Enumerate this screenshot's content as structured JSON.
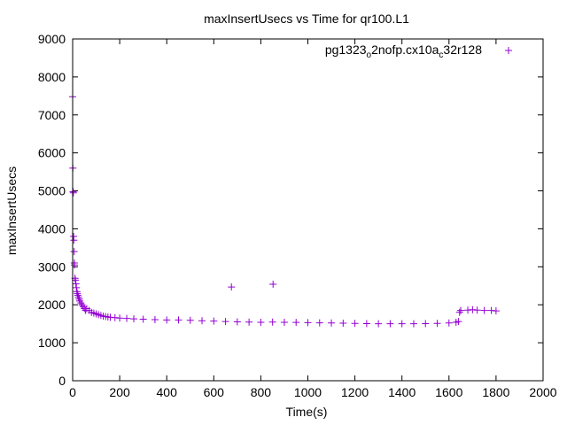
{
  "chart_data": {
    "type": "scatter",
    "title": "maxInsertUsecs vs Time for qr100.L1",
    "xlabel": "Time(s)",
    "ylabel": "maxInsertUsecs",
    "xlim": [
      0,
      2000
    ],
    "ylim": [
      0,
      9000
    ],
    "x_ticks": [
      "0",
      "200",
      "400",
      "600",
      "800",
      "1000",
      "1200",
      "1400",
      "1600",
      "1800",
      "2000"
    ],
    "y_ticks": [
      "0",
      "1000",
      "2000",
      "3000",
      "4000",
      "5000",
      "6000",
      "7000",
      "8000",
      "9000"
    ],
    "grid": false,
    "legend_position": "top-right",
    "marker": "+",
    "series": [
      {
        "name_parts": [
          {
            "text": "pg1323",
            "sub": false
          },
          {
            "text": "o",
            "sub": true
          },
          {
            "text": "2nofp.cx10a",
            "sub": false
          },
          {
            "text": "c",
            "sub": true
          },
          {
            "text": "32r128",
            "sub": false
          }
        ],
        "color": "#9400d3",
        "points": [
          [
            0,
            7480
          ],
          [
            1,
            5600
          ],
          [
            2,
            4980
          ],
          [
            3,
            4950
          ],
          [
            4,
            3800
          ],
          [
            5,
            3700
          ],
          [
            6,
            3400
          ],
          [
            7,
            3100
          ],
          [
            8,
            3050
          ],
          [
            10,
            2700
          ],
          [
            12,
            2650
          ],
          [
            14,
            2550
          ],
          [
            16,
            2450
          ],
          [
            18,
            2350
          ],
          [
            20,
            2300
          ],
          [
            22,
            2250
          ],
          [
            25,
            2200
          ],
          [
            28,
            2150
          ],
          [
            30,
            2100
          ],
          [
            35,
            2050
          ],
          [
            40,
            2000
          ],
          [
            45,
            1950
          ],
          [
            50,
            1900
          ],
          [
            55,
            1850
          ],
          [
            60,
            1900
          ],
          [
            70,
            1850
          ],
          [
            80,
            1800
          ],
          [
            90,
            1780
          ],
          [
            100,
            1760
          ],
          [
            110,
            1740
          ],
          [
            120,
            1720
          ],
          [
            130,
            1700
          ],
          [
            140,
            1690
          ],
          [
            150,
            1680
          ],
          [
            160,
            1670
          ],
          [
            180,
            1660
          ],
          [
            200,
            1650
          ],
          [
            230,
            1640
          ],
          [
            260,
            1630
          ],
          [
            300,
            1620
          ],
          [
            350,
            1610
          ],
          [
            400,
            1600
          ],
          [
            450,
            1600
          ],
          [
            500,
            1590
          ],
          [
            550,
            1580
          ],
          [
            600,
            1570
          ],
          [
            650,
            1560
          ],
          [
            675,
            2470
          ],
          [
            700,
            1550
          ],
          [
            750,
            1545
          ],
          [
            800,
            1540
          ],
          [
            850,
            1545
          ],
          [
            852,
            2540
          ],
          [
            900,
            1540
          ],
          [
            950,
            1535
          ],
          [
            1000,
            1530
          ],
          [
            1050,
            1525
          ],
          [
            1100,
            1520
          ],
          [
            1150,
            1515
          ],
          [
            1200,
            1510
          ],
          [
            1250,
            1505
          ],
          [
            1300,
            1500
          ],
          [
            1350,
            1500
          ],
          [
            1400,
            1500
          ],
          [
            1450,
            1500
          ],
          [
            1500,
            1505
          ],
          [
            1550,
            1510
          ],
          [
            1600,
            1520
          ],
          [
            1630,
            1540
          ],
          [
            1640,
            1560
          ],
          [
            1645,
            1800
          ],
          [
            1650,
            1850
          ],
          [
            1680,
            1860
          ],
          [
            1700,
            1870
          ],
          [
            1720,
            1860
          ],
          [
            1750,
            1850
          ],
          [
            1780,
            1850
          ],
          [
            1800,
            1840
          ]
        ]
      }
    ]
  }
}
